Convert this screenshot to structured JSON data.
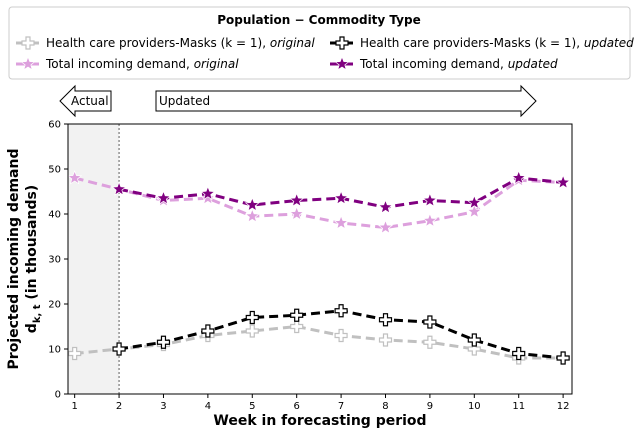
{
  "chart_data": {
    "type": "line",
    "title": "",
    "xlabel": "Week in forecasting period",
    "ylabel_main": "Projected incoming demand",
    "ylabel_sub": "d",
    "ylabel_subscript": "k, t",
    "ylabel_units": " (in thousands)",
    "x": [
      1,
      2,
      3,
      4,
      5,
      6,
      7,
      8,
      9,
      10,
      11,
      12
    ],
    "xlim": [
      0.85,
      12.2
    ],
    "ylim": [
      0,
      60
    ],
    "yticks": [
      0,
      10,
      20,
      30,
      40,
      50,
      60
    ],
    "grid": false,
    "actual_region_end": 2,
    "series": [
      {
        "key": "hc_original",
        "name_plain": "Health care providers-Masks (k = 1), ",
        "name_italic": "original",
        "color": "#c0c0c0",
        "marker": "plus",
        "values": [
          9,
          10,
          11,
          13,
          14,
          15,
          13,
          12,
          11.5,
          10,
          8,
          8
        ]
      },
      {
        "key": "total_original",
        "name_plain": "Total incoming demand, ",
        "name_italic": "original",
        "color": "#dda0dd",
        "marker": "star",
        "values": [
          48,
          45.5,
          43,
          43.5,
          39.5,
          40,
          38,
          37,
          38.5,
          40.5,
          47.5,
          47
        ]
      },
      {
        "key": "hc_updated",
        "name_plain": "Health care providers-Masks (k = 1), ",
        "name_italic": "updated",
        "color": "#000000",
        "marker": "plus",
        "values": [
          null,
          10,
          11.5,
          14,
          17,
          17.5,
          18.5,
          16.5,
          16,
          12,
          9,
          8
        ]
      },
      {
        "key": "total_updated",
        "name_plain": "Total incoming demand, ",
        "name_italic": "updated",
        "color": "#800080",
        "marker": "star",
        "values": [
          null,
          45.5,
          43.5,
          44.5,
          42,
          43,
          43.5,
          41.5,
          43,
          42.5,
          48,
          47
        ]
      }
    ],
    "legend": {
      "title": "Population − Commodity Type",
      "placement": "top"
    },
    "arrows": {
      "actual_label": "Actual",
      "updated_label": "Updated"
    }
  }
}
